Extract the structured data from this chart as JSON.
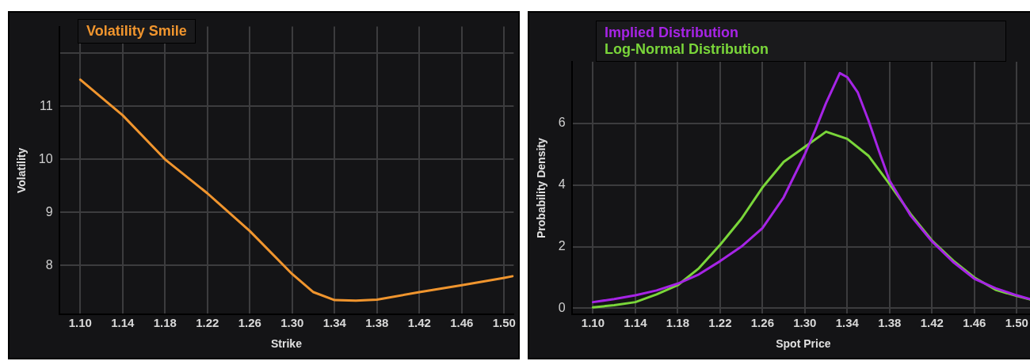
{
  "chart_data": [
    {
      "type": "line",
      "xlabel": "Strike",
      "ylabel": "Volatility",
      "legend": "top left",
      "grid": true,
      "marker": "none",
      "line_style": "solid",
      "xlim": [
        1.08,
        1.509
      ],
      "ylim": [
        7.08,
        12.5
      ],
      "xticks": [
        {
          "value": 1.1,
          "label": "1.10"
        },
        1.14,
        1.18,
        1.22,
        1.26,
        {
          "value": 1.3,
          "label": "1.30"
        },
        1.34,
        1.38,
        1.42,
        1.46,
        {
          "value": 1.5,
          "label": "1.50"
        }
      ],
      "yticks": [
        8,
        9,
        10,
        11,
        {
          "value": 12,
          "label": null
        }
      ],
      "series": [
        {
          "name": "Volatility Smile",
          "color": "#f0952e",
          "x": [
            1.1,
            1.14,
            1.18,
            1.22,
            1.26,
            1.3,
            1.32,
            1.34,
            1.36,
            1.38,
            1.42,
            1.46,
            1.5,
            1.508
          ],
          "values": [
            11.5,
            10.83,
            10.0,
            9.36,
            8.65,
            7.84,
            7.5,
            7.35,
            7.34,
            7.36,
            7.5,
            7.63,
            7.77,
            7.8
          ]
        }
      ]
    },
    {
      "type": "line",
      "xlabel": "Spot Price",
      "ylabel": "Probability Density",
      "legend": "top",
      "grid": true,
      "marker": "none",
      "line_style": "solid",
      "xlim": [
        1.08,
        1.517
      ],
      "ylim": [
        -0.2,
        8
      ],
      "xticks": [
        {
          "value": 1.1,
          "label": "1.10"
        },
        1.14,
        1.18,
        1.22,
        1.26,
        {
          "value": 1.3,
          "label": "1.30"
        },
        1.34,
        1.38,
        1.42,
        1.46,
        {
          "value": 1.5,
          "label": "1.50"
        }
      ],
      "yticks": [
        0,
        2,
        4,
        6
      ],
      "series": [
        {
          "name": "Implied Distribution",
          "color": "#a624e6",
          "x": [
            1.1,
            1.12,
            1.14,
            1.16,
            1.18,
            1.2,
            1.22,
            1.24,
            1.26,
            1.28,
            1.3,
            1.31,
            1.32,
            1.333,
            1.34,
            1.35,
            1.36,
            1.37,
            1.38,
            1.4,
            1.42,
            1.44,
            1.46,
            1.48,
            1.5,
            1.517
          ],
          "values": [
            0.2,
            0.3,
            0.42,
            0.58,
            0.8,
            1.1,
            1.53,
            2.0,
            2.6,
            3.6,
            5.0,
            5.8,
            6.66,
            7.63,
            7.5,
            7.0,
            6.1,
            5.1,
            4.14,
            3.0,
            2.17,
            1.5,
            0.96,
            0.65,
            0.42,
            0.25
          ]
        },
        {
          "name": "Log-Normal Distribution",
          "color": "#7ad63a",
          "x": [
            1.1,
            1.12,
            1.14,
            1.16,
            1.18,
            1.2,
            1.22,
            1.24,
            1.26,
            1.28,
            1.3,
            1.32,
            1.34,
            1.36,
            1.38,
            1.4,
            1.42,
            1.44,
            1.46,
            1.48,
            1.5,
            1.517
          ],
          "values": [
            0.03,
            0.1,
            0.2,
            0.45,
            0.75,
            1.3,
            2.06,
            2.9,
            3.92,
            4.75,
            5.24,
            5.73,
            5.5,
            4.95,
            4.03,
            3.05,
            2.2,
            1.55,
            1.0,
            0.6,
            0.4,
            0.25
          ]
        }
      ]
    }
  ]
}
